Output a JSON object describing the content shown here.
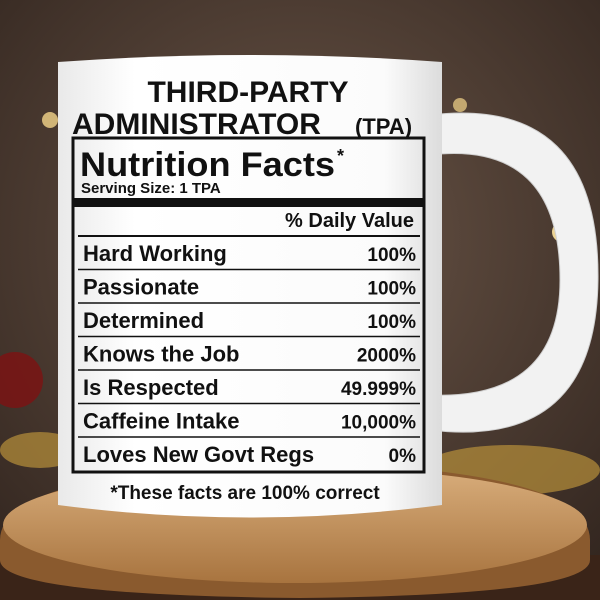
{
  "header": {
    "line1": "THIRD-PARTY",
    "line2": "ADMINISTRATOR",
    "abbr": "(TPA)"
  },
  "label": {
    "title": "Nutrition Facts",
    "title_mark": "*",
    "serving": "Serving Size: 1 TPA",
    "column_header": "% Daily Value",
    "rows": [
      [
        "Hard Working",
        "100%"
      ],
      [
        "Passionate",
        "100%"
      ],
      [
        "Determined",
        "100%"
      ],
      [
        "Knows the Job",
        "2000%"
      ],
      [
        "Is Respected",
        "49.999%"
      ],
      [
        "Caffeine Intake",
        "10,000%"
      ],
      [
        "Loves New Govt Regs",
        "0%"
      ]
    ]
  },
  "footnote": "*These facts are 100% correct"
}
